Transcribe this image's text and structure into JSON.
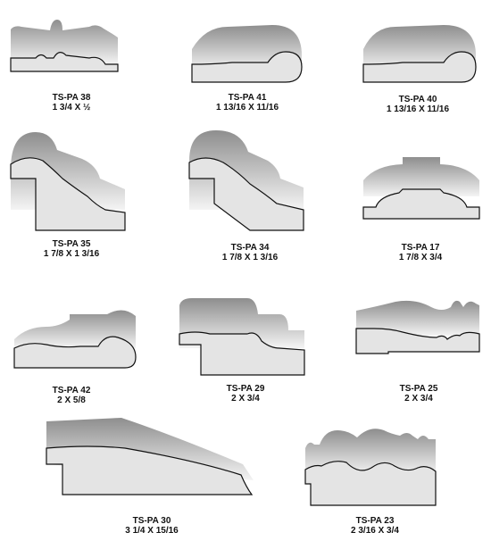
{
  "profiles": [
    {
      "code": "TS-PA 38",
      "size": "1 3/4 X ½"
    },
    {
      "code": "TS-PA 41",
      "size": "1 13/16 X 11/16"
    },
    {
      "code": "TS-PA 40",
      "size": "1 13/16 X 11/16"
    },
    {
      "code": "TS-PA 35",
      "size": "1 7/8 X 1 3/16"
    },
    {
      "code": "TS-PA 34",
      "size": "1 7/8 X 1 3/16"
    },
    {
      "code": "TS-PA 17",
      "size": "1 7/8 X 3/4"
    },
    {
      "code": "TS-PA 42",
      "size": "2 X 5/8"
    },
    {
      "code": "TS-PA 29",
      "size": "2 X 3/4"
    },
    {
      "code": "TS-PA 25",
      "size": "2 X 3/4"
    },
    {
      "code": "TS-PA 30",
      "size": "3 1/4 X 15/16"
    },
    {
      "code": "TS-PA 23",
      "size": "2 3/16 X 3/4"
    }
  ],
  "colors": {
    "face": "#e4e4e4",
    "outline": "#111111",
    "shade_dark": "#8e8e8e",
    "shade_light": "#f4f4f4"
  }
}
